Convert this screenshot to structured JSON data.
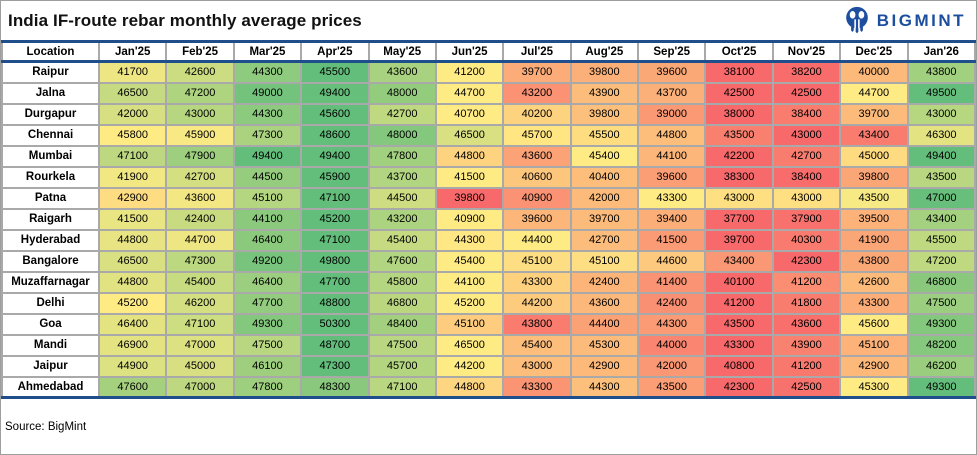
{
  "title": "India IF-route rebar monthly average prices",
  "logo": {
    "text": "BIGMINT"
  },
  "source": {
    "label": "Source: BigMint"
  },
  "colors": {
    "accent_blue_lines": "#1f4e8c",
    "logo_blue": "#1d4f9e",
    "grid_gray": "#a9a9a9"
  },
  "chart_data": {
    "type": "heatmap",
    "title": "India IF-route rebar monthly average prices",
    "row_header": "Location",
    "columns": [
      "Jan'25",
      "Feb'25",
      "Mar'25",
      "Apr'25",
      "May'25",
      "Jun'25",
      "Jul'25",
      "Aug'25",
      "Sep'25",
      "Oct'25",
      "Nov'25",
      "Dec'25",
      "Jan'26"
    ],
    "rows": [
      {
        "location": "Raipur",
        "values": [
          41700,
          42600,
          44300,
          45500,
          43600,
          41200,
          39700,
          39800,
          39600,
          38100,
          38200,
          40000,
          43800
        ]
      },
      {
        "location": "Jalna",
        "values": [
          46500,
          47200,
          49000,
          49400,
          48000,
          44700,
          43200,
          43900,
          43700,
          42500,
          42500,
          44700,
          49500
        ]
      },
      {
        "location": "Durgapur",
        "values": [
          42000,
          43000,
          44300,
          45600,
          42700,
          40700,
          40200,
          39800,
          39000,
          38000,
          38400,
          39700,
          43000
        ]
      },
      {
        "location": "Chennai",
        "values": [
          45800,
          45900,
          47300,
          48600,
          48000,
          46500,
          45700,
          45500,
          44800,
          43500,
          43000,
          43400,
          46300
        ]
      },
      {
        "location": "Mumbai",
        "values": [
          47100,
          47900,
          49400,
          49400,
          47800,
          44800,
          43600,
          45400,
          44100,
          42200,
          42700,
          45000,
          49400
        ]
      },
      {
        "location": "Rourkela",
        "values": [
          41900,
          42700,
          44500,
          45900,
          43700,
          41500,
          40600,
          40400,
          39600,
          38300,
          38400,
          39800,
          43500
        ]
      },
      {
        "location": "Patna",
        "values": [
          42900,
          43600,
          45100,
          47100,
          44500,
          39800,
          40900,
          42000,
          43300,
          43000,
          43000,
          43500,
          47000
        ]
      },
      {
        "location": "Raigarh",
        "values": [
          41500,
          42400,
          44100,
          45200,
          43200,
          40900,
          39600,
          39700,
          39400,
          37700,
          37900,
          39500,
          43400
        ]
      },
      {
        "location": "Hyderabad",
        "values": [
          44800,
          44700,
          46400,
          47100,
          45400,
          44300,
          44400,
          42700,
          41500,
          39700,
          40300,
          41900,
          45500
        ]
      },
      {
        "location": "Bangalore",
        "values": [
          46500,
          47300,
          49200,
          49800,
          47600,
          45400,
          45100,
          45100,
          44600,
          43400,
          42300,
          43800,
          47200
        ]
      },
      {
        "location": "Muzaffarnagar",
        "values": [
          44800,
          45400,
          46400,
          47700,
          45800,
          44100,
          43300,
          42400,
          41400,
          40100,
          41200,
          42600,
          46800
        ]
      },
      {
        "location": "Delhi",
        "values": [
          45200,
          46200,
          47700,
          48800,
          46800,
          45200,
          44200,
          43600,
          42400,
          41200,
          41800,
          43300,
          47500
        ]
      },
      {
        "location": "Goa",
        "values": [
          46400,
          47100,
          49300,
          50300,
          48400,
          45100,
          43800,
          44400,
          44300,
          43500,
          43600,
          45600,
          49300
        ]
      },
      {
        "location": "Mandi",
        "values": [
          46900,
          47000,
          47500,
          48700,
          47500,
          46500,
          45400,
          45300,
          44000,
          43300,
          43900,
          45100,
          48200
        ]
      },
      {
        "location": "Jaipur",
        "values": [
          44900,
          45000,
          46100,
          47300,
          45700,
          44200,
          43000,
          42900,
          42000,
          40800,
          41200,
          42900,
          46200
        ]
      },
      {
        "location": "Ahmedabad",
        "values": [
          47600,
          47000,
          47800,
          48300,
          47100,
          44800,
          43300,
          44300,
          43500,
          42300,
          42500,
          45300,
          49300
        ]
      }
    ],
    "color_scale": {
      "mode": "per-row 3-color scale, midpoint at row median",
      "min_color": "#F8696B",
      "mid_color": "#FFEB84",
      "max_color": "#63BE7B"
    },
    "legend_position": "none",
    "grid": true
  }
}
